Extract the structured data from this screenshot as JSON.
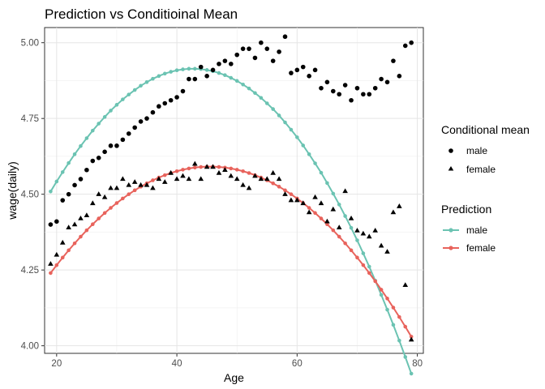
{
  "chart_data": {
    "type": "scatter",
    "title": "Prediction vs Conditioinal Mean",
    "xlabel": "Age",
    "ylabel": "wage(daily)",
    "xlim": [
      18,
      81
    ],
    "ylim": [
      3.975,
      5.05
    ],
    "x_ticks": [
      20,
      40,
      60,
      80
    ],
    "y_ticks": [
      4.0,
      4.25,
      4.5,
      4.75,
      5.0
    ],
    "y_tick_labels": [
      "4.00",
      "4.25",
      "4.50",
      "4.75",
      "5.00"
    ],
    "grid": true,
    "legend_placement": "right",
    "legends": [
      {
        "title": "Conditional mean",
        "entries": [
          {
            "label": "male",
            "shape": "circle"
          },
          {
            "label": "female",
            "shape": "triangle"
          }
        ]
      },
      {
        "title": "Prediction",
        "entries": [
          {
            "label": "male",
            "color": "#6BC3B2"
          },
          {
            "label": "female",
            "color": "#E8635C"
          }
        ]
      }
    ],
    "prediction_series": [
      {
        "name": "male",
        "color": "#6BC3B2",
        "x": [
          19,
          20,
          21,
          22,
          23,
          24,
          25,
          26,
          27,
          28,
          29,
          30,
          31,
          32,
          33,
          34,
          35,
          36,
          37,
          38,
          39,
          40,
          41,
          42,
          43,
          44,
          45,
          46,
          47,
          48,
          49,
          50,
          51,
          52,
          53,
          54,
          55,
          56,
          57,
          58,
          59,
          60,
          61,
          62,
          63,
          64,
          65,
          66,
          67,
          68,
          69,
          70,
          71,
          72,
          73,
          74,
          75,
          76,
          77,
          78,
          79
        ],
        "values": [
          4.509,
          4.542,
          4.573,
          4.603,
          4.632,
          4.659,
          4.685,
          4.71,
          4.733,
          4.755,
          4.776,
          4.795,
          4.813,
          4.829,
          4.844,
          4.858,
          4.87,
          4.881,
          4.89,
          4.898,
          4.904,
          4.909,
          4.912,
          4.914,
          4.914,
          4.913,
          4.91,
          4.906,
          4.9,
          4.893,
          4.884,
          4.874,
          4.862,
          4.849,
          4.834,
          4.818,
          4.8,
          4.781,
          4.76,
          4.737,
          4.713,
          4.688,
          4.661,
          4.632,
          4.602,
          4.571,
          4.537,
          4.502,
          4.466,
          4.428,
          4.389,
          4.348,
          4.305,
          4.261,
          4.215,
          4.168,
          4.119,
          4.069,
          4.017,
          3.963,
          3.908
        ]
      },
      {
        "name": "female",
        "color": "#E8635C",
        "x": [
          19,
          20,
          21,
          22,
          23,
          24,
          25,
          26,
          27,
          28,
          29,
          30,
          31,
          32,
          33,
          34,
          35,
          36,
          37,
          38,
          39,
          40,
          41,
          42,
          43,
          44,
          45,
          46,
          47,
          48,
          49,
          50,
          51,
          52,
          53,
          54,
          55,
          56,
          57,
          58,
          59,
          60,
          61,
          62,
          63,
          64,
          65,
          66,
          67,
          68,
          69,
          70,
          71,
          72,
          73,
          74,
          75,
          76,
          77,
          78,
          79
        ],
        "values": [
          4.24,
          4.266,
          4.291,
          4.315,
          4.338,
          4.36,
          4.381,
          4.401,
          4.42,
          4.438,
          4.455,
          4.471,
          4.486,
          4.5,
          4.513,
          4.525,
          4.536,
          4.546,
          4.555,
          4.563,
          4.57,
          4.576,
          4.581,
          4.585,
          4.588,
          4.59,
          4.591,
          4.591,
          4.59,
          4.588,
          4.585,
          4.581,
          4.576,
          4.57,
          4.563,
          4.555,
          4.546,
          4.536,
          4.525,
          4.513,
          4.5,
          4.486,
          4.471,
          4.455,
          4.438,
          4.42,
          4.401,
          4.381,
          4.36,
          4.338,
          4.315,
          4.291,
          4.266,
          4.24,
          4.213,
          4.185,
          4.156,
          4.126,
          4.095,
          4.063,
          4.03
        ]
      }
    ],
    "conditional_mean_series": [
      {
        "name": "male",
        "shape": "circle",
        "x": [
          19,
          20,
          21,
          22,
          23,
          24,
          25,
          26,
          27,
          28,
          29,
          30,
          31,
          32,
          33,
          34,
          35,
          36,
          37,
          38,
          39,
          40,
          41,
          42,
          43,
          44,
          45,
          46,
          47,
          48,
          49,
          50,
          51,
          52,
          53,
          54,
          55,
          56,
          57,
          58,
          59,
          60,
          61,
          62,
          63,
          64,
          65,
          66,
          67,
          68,
          69,
          70,
          71,
          72,
          73,
          74,
          75,
          76,
          77,
          78,
          79
        ],
        "values": [
          4.4,
          4.41,
          4.48,
          4.5,
          4.53,
          4.55,
          4.58,
          4.61,
          4.62,
          4.64,
          4.66,
          4.66,
          4.68,
          4.7,
          4.72,
          4.74,
          4.75,
          4.77,
          4.79,
          4.8,
          4.81,
          4.82,
          4.84,
          4.88,
          4.88,
          4.92,
          4.89,
          4.91,
          4.93,
          4.94,
          4.93,
          4.96,
          4.98,
          4.98,
          4.95,
          5.0,
          4.98,
          4.94,
          4.97,
          5.02,
          4.9,
          4.91,
          4.92,
          4.89,
          4.91,
          4.85,
          4.87,
          4.84,
          4.83,
          4.86,
          4.81,
          4.85,
          4.83,
          4.83,
          4.85,
          4.88,
          4.87,
          4.94,
          4.89,
          4.99,
          5.0
        ]
      },
      {
        "name": "female",
        "shape": "triangle",
        "x": [
          19,
          20,
          21,
          22,
          23,
          24,
          25,
          26,
          27,
          28,
          29,
          30,
          31,
          32,
          33,
          34,
          35,
          36,
          37,
          38,
          39,
          40,
          41,
          42,
          43,
          44,
          45,
          46,
          47,
          48,
          49,
          50,
          51,
          52,
          53,
          54,
          55,
          56,
          57,
          58,
          59,
          60,
          61,
          62,
          63,
          64,
          65,
          66,
          67,
          68,
          69,
          70,
          71,
          72,
          73,
          74,
          75,
          76,
          77,
          78,
          79
        ],
        "values": [
          4.27,
          4.3,
          4.34,
          4.39,
          4.4,
          4.42,
          4.43,
          4.47,
          4.5,
          4.49,
          4.52,
          4.52,
          4.55,
          4.53,
          4.54,
          4.53,
          4.53,
          4.52,
          4.55,
          4.54,
          4.57,
          4.55,
          4.56,
          4.55,
          4.6,
          4.55,
          4.59,
          4.59,
          4.57,
          4.58,
          4.56,
          4.55,
          4.53,
          4.52,
          4.56,
          4.55,
          4.55,
          4.57,
          4.55,
          4.5,
          4.48,
          4.48,
          4.47,
          4.44,
          4.49,
          4.47,
          4.41,
          4.45,
          4.39,
          4.51,
          4.42,
          4.38,
          4.37,
          4.36,
          4.38,
          4.33,
          4.31,
          4.44,
          4.46,
          4.2,
          4.02
        ]
      }
    ]
  }
}
